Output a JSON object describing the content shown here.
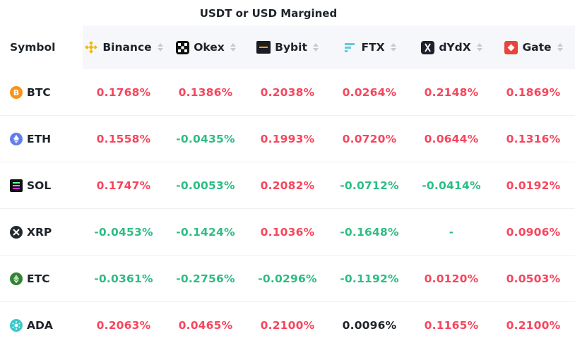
{
  "caption": "USDT or USD Margined",
  "header": {
    "symbol_label": "Symbol",
    "exchanges": [
      {
        "name": "Binance",
        "icon": "binance-icon"
      },
      {
        "name": "Okex",
        "icon": "okex-icon"
      },
      {
        "name": "Bybit",
        "icon": "bybit-icon"
      },
      {
        "name": "FTX",
        "icon": "ftx-icon"
      },
      {
        "name": "dYdX",
        "icon": "dydx-icon"
      },
      {
        "name": "Gate",
        "icon": "gate-icon"
      }
    ]
  },
  "colors": {
    "positive": "#f6465d",
    "negative": "#2ebd85",
    "neutral": "#1e2329"
  },
  "rows": [
    {
      "symbol": "BTC",
      "icon": "btc-icon",
      "values": [
        "0.1768%",
        "0.1386%",
        "0.2038%",
        "0.0264%",
        "0.2148%",
        "0.1869%"
      ]
    },
    {
      "symbol": "ETH",
      "icon": "eth-icon",
      "values": [
        "0.1558%",
        "-0.0435%",
        "0.1993%",
        "0.0720%",
        "0.0644%",
        "0.1316%"
      ]
    },
    {
      "symbol": "SOL",
      "icon": "sol-icon",
      "values": [
        "0.1747%",
        "-0.0053%",
        "0.2082%",
        "-0.0712%",
        "-0.0414%",
        "0.0192%"
      ]
    },
    {
      "symbol": "XRP",
      "icon": "xrp-icon",
      "values": [
        "-0.0453%",
        "-0.1424%",
        "0.1036%",
        "-0.1648%",
        "-",
        "0.0906%"
      ]
    },
    {
      "symbol": "ETC",
      "icon": "etc-icon",
      "values": [
        "-0.0361%",
        "-0.2756%",
        "-0.0296%",
        "-0.1192%",
        "0.0120%",
        "0.0503%"
      ]
    },
    {
      "symbol": "ADA",
      "icon": "ada-icon",
      "values": [
        "0.2063%",
        "0.0465%",
        "0.2100%",
        "0.0096%",
        "0.1165%",
        "0.2100%"
      ]
    }
  ]
}
